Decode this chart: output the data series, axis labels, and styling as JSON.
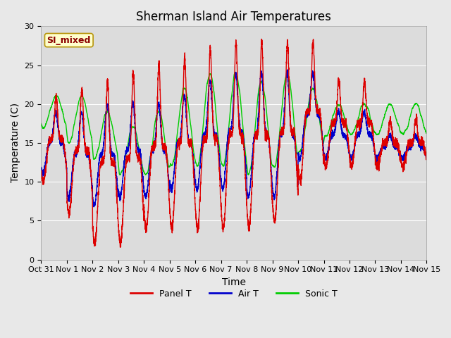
{
  "title": "Sherman Island Air Temperatures",
  "xlabel": "Time",
  "ylabel": "Temperature (C)",
  "ylim": [
    0,
    30
  ],
  "x_tick_labels": [
    "Oct 31",
    "Nov 1",
    "Nov 2",
    "Nov 3",
    "Nov 4",
    "Nov 5",
    "Nov 6",
    "Nov 7",
    "Nov 8",
    "Nov 9",
    "Nov 10",
    "Nov 11",
    "Nov 12",
    "Nov 13",
    "Nov 14",
    "Nov 15"
  ],
  "plot_bg_color": "#dcdcdc",
  "fig_bg_color": "#e8e8e8",
  "legend_label": "SI_mixed",
  "legend_label_color": "#8b0000",
  "legend_label_bg": "#ffffcc",
  "legend_label_edge": "#b8960c",
  "line_colors": {
    "panel": "#dd0000",
    "air": "#0000cc",
    "sonic": "#00cc00"
  },
  "legend_entries": [
    "Panel T",
    "Air T",
    "Sonic T"
  ],
  "title_fontsize": 12,
  "axis_fontsize": 10,
  "tick_fontsize": 8,
  "linewidth": 1.0,
  "grid_color": "#ffffff",
  "yticks": [
    0,
    5,
    10,
    15,
    20,
    25,
    30
  ]
}
